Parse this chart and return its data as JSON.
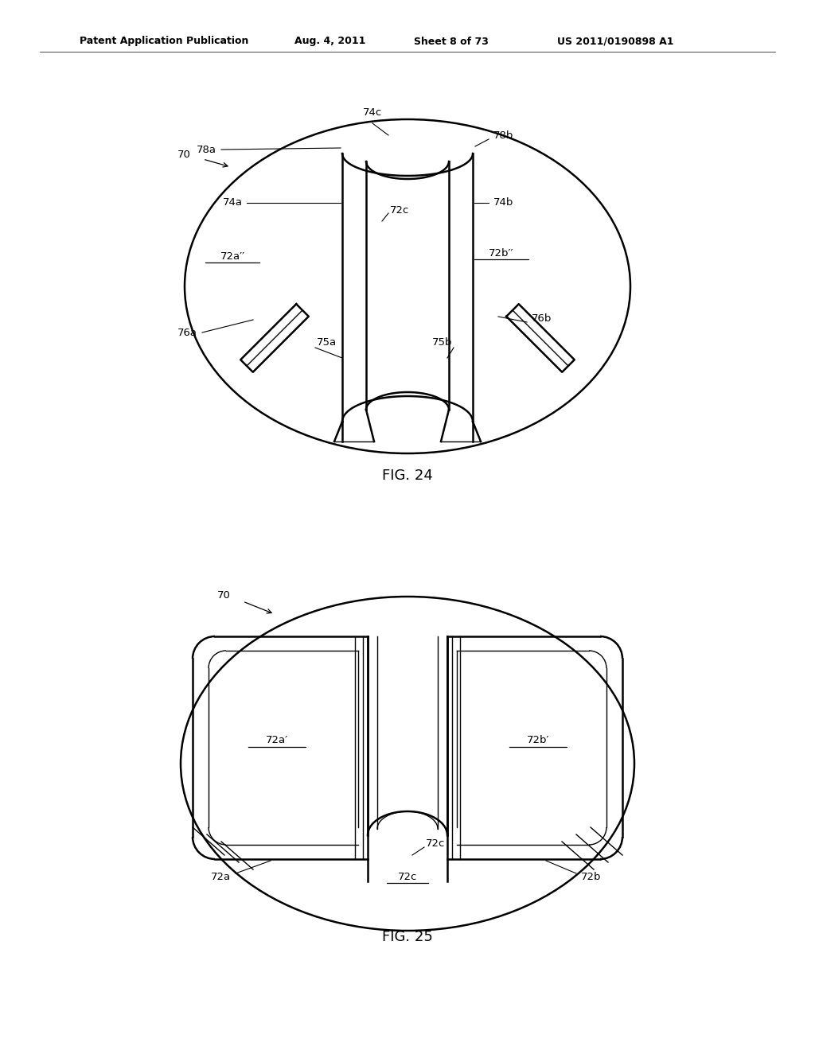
{
  "background_color": "#ffffff",
  "line_color": "#000000",
  "header_text": "Patent Application Publication",
  "header_date": "Aug. 4, 2011",
  "header_sheet": "Sheet 8 of 73",
  "header_patent": "US 2011/0190898 A1",
  "fig24_caption": "FIG. 24",
  "fig25_caption": "FIG. 25"
}
